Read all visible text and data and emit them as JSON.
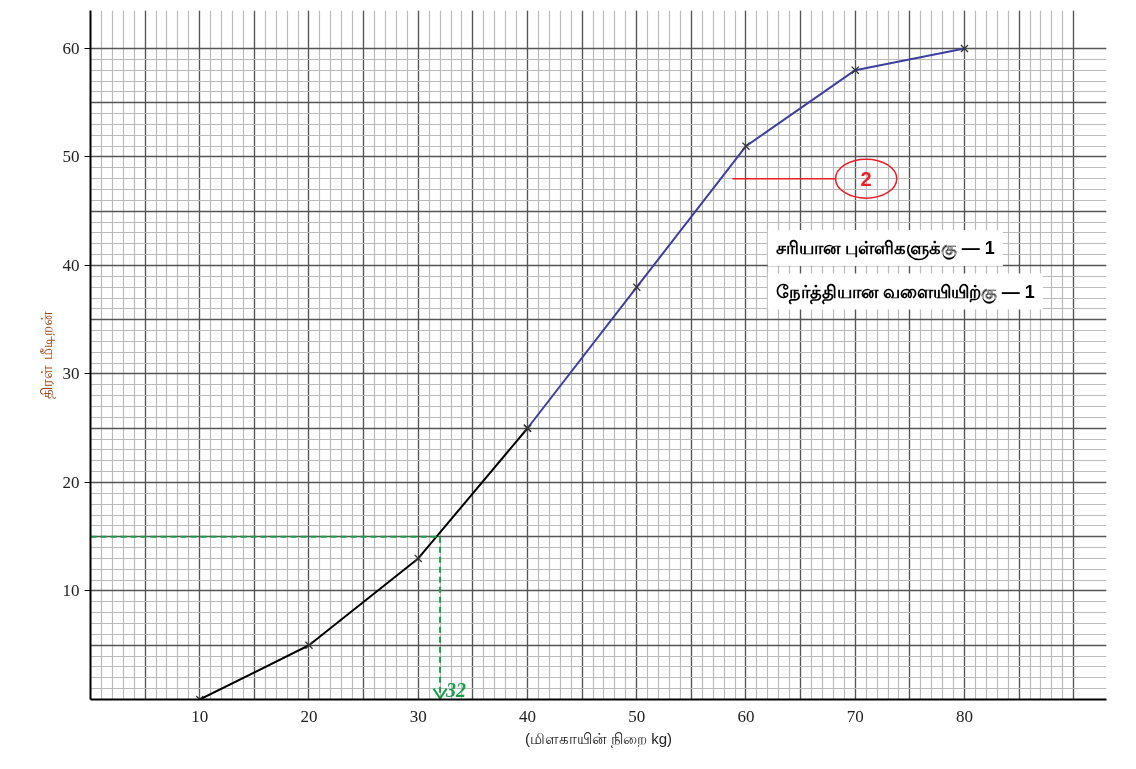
{
  "chart_data": {
    "type": "line",
    "xlabel": "(மிளகாயின் நிறை kg)",
    "ylabel": "திரள் மீடிறன்",
    "series": [
      {
        "color": "#000000",
        "x": [
          10,
          20,
          30,
          40
        ],
        "values": [
          0,
          5,
          13,
          25
        ]
      },
      {
        "color": "#3f3f9f",
        "x": [
          40,
          50,
          60,
          70,
          80
        ],
        "values": [
          25,
          38,
          51,
          58,
          60
        ]
      }
    ],
    "marker": "cross",
    "xlim": [
      0,
      93
    ],
    "ylim": [
      0,
      63.5
    ],
    "xticks": [
      10,
      20,
      30,
      40,
      50,
      60,
      70,
      80
    ],
    "yticks": [
      10,
      20,
      30,
      40,
      50,
      60
    ],
    "grid": true,
    "ref_lines": [
      {
        "axis": "y",
        "value": 15,
        "color": "#1a9e4a",
        "line_style": "dashed"
      },
      {
        "axis": "x",
        "value": 32,
        "label": "32",
        "color": "#1a9e4a",
        "line_style": "dashed"
      }
    ],
    "annotations": [
      "2",
      "சரியான புள்ளிகளுக்கு — 1",
      "நேர்த்தியான வளையியிற்கு — 1"
    ]
  }
}
